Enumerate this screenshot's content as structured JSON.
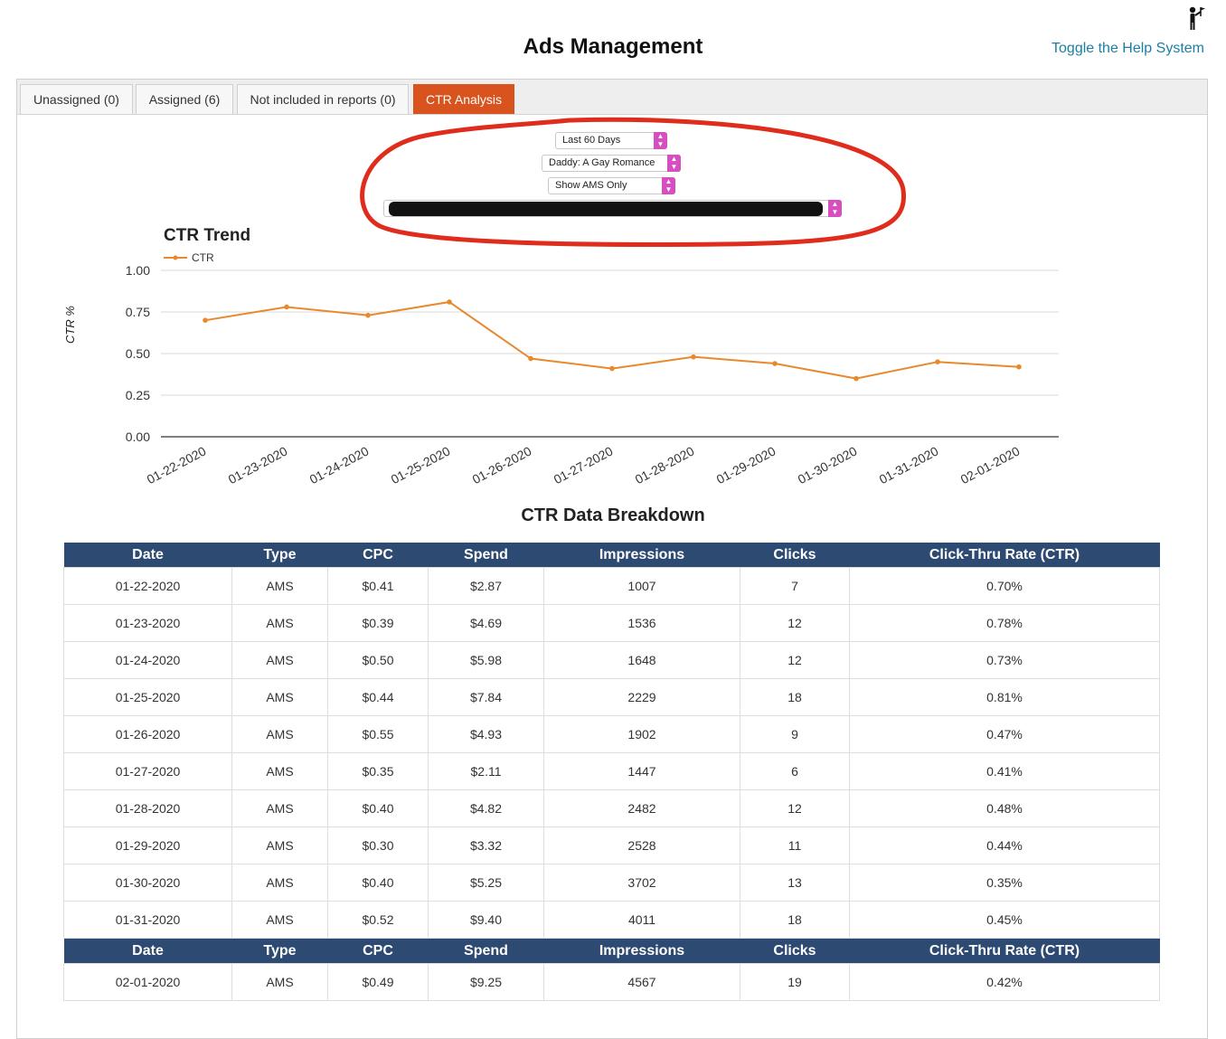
{
  "header": {
    "title": "Ads Management",
    "help_link": "Toggle the Help System"
  },
  "tabs": [
    {
      "label": "Unassigned (0)",
      "active": false
    },
    {
      "label": "Assigned (6)",
      "active": false
    },
    {
      "label": "Not included in reports (0)",
      "active": false
    },
    {
      "label": "CTR Analysis",
      "active": true
    }
  ],
  "filters": {
    "range": "Last 60 Days",
    "book": "Daddy: A Gay Romance",
    "source": "Show AMS Only"
  },
  "colors": {
    "accent": "#d9531e",
    "line": "#e8892e",
    "table_header": "#2d4a72",
    "select_arrow": "#d64ec0",
    "annotation": "#e02c1c"
  },
  "chart_data": {
    "type": "line",
    "title": "CTR Trend",
    "ylabel": "CTR %",
    "legend": "CTR",
    "ylim": [
      0,
      1
    ],
    "yticks": [
      "0.00",
      "0.25",
      "0.50",
      "0.75",
      "1.00"
    ],
    "categories": [
      "01-22-2020",
      "01-23-2020",
      "01-24-2020",
      "01-25-2020",
      "01-26-2020",
      "01-27-2020",
      "01-28-2020",
      "01-29-2020",
      "01-30-2020",
      "01-31-2020",
      "02-01-2020"
    ],
    "series": [
      {
        "name": "CTR",
        "values": [
          0.7,
          0.78,
          0.73,
          0.81,
          0.47,
          0.41,
          0.48,
          0.44,
          0.35,
          0.45,
          0.42
        ]
      }
    ]
  },
  "breakdown": {
    "title": "CTR Data Breakdown",
    "columns": [
      "Date",
      "Type",
      "CPC",
      "Spend",
      "Impressions",
      "Clicks",
      "Click-Thru Rate (CTR)"
    ],
    "rows": [
      [
        "01-22-2020",
        "AMS",
        "$0.41",
        "$2.87",
        "1007",
        "7",
        "0.70%"
      ],
      [
        "01-23-2020",
        "AMS",
        "$0.39",
        "$4.69",
        "1536",
        "12",
        "0.78%"
      ],
      [
        "01-24-2020",
        "AMS",
        "$0.50",
        "$5.98",
        "1648",
        "12",
        "0.73%"
      ],
      [
        "01-25-2020",
        "AMS",
        "$0.44",
        "$7.84",
        "2229",
        "18",
        "0.81%"
      ],
      [
        "01-26-2020",
        "AMS",
        "$0.55",
        "$4.93",
        "1902",
        "9",
        "0.47%"
      ],
      [
        "01-27-2020",
        "AMS",
        "$0.35",
        "$2.11",
        "1447",
        "6",
        "0.41%"
      ],
      [
        "01-28-2020",
        "AMS",
        "$0.40",
        "$4.82",
        "2482",
        "12",
        "0.48%"
      ],
      [
        "01-29-2020",
        "AMS",
        "$0.30",
        "$3.32",
        "2528",
        "11",
        "0.44%"
      ],
      [
        "01-30-2020",
        "AMS",
        "$0.40",
        "$5.25",
        "3702",
        "13",
        "0.35%"
      ],
      [
        "01-31-2020",
        "AMS",
        "$0.52",
        "$9.40",
        "4011",
        "18",
        "0.45%"
      ]
    ],
    "rows2": [
      [
        "02-01-2020",
        "AMS",
        "$0.49",
        "$9.25",
        "4567",
        "19",
        "0.42%"
      ]
    ]
  }
}
